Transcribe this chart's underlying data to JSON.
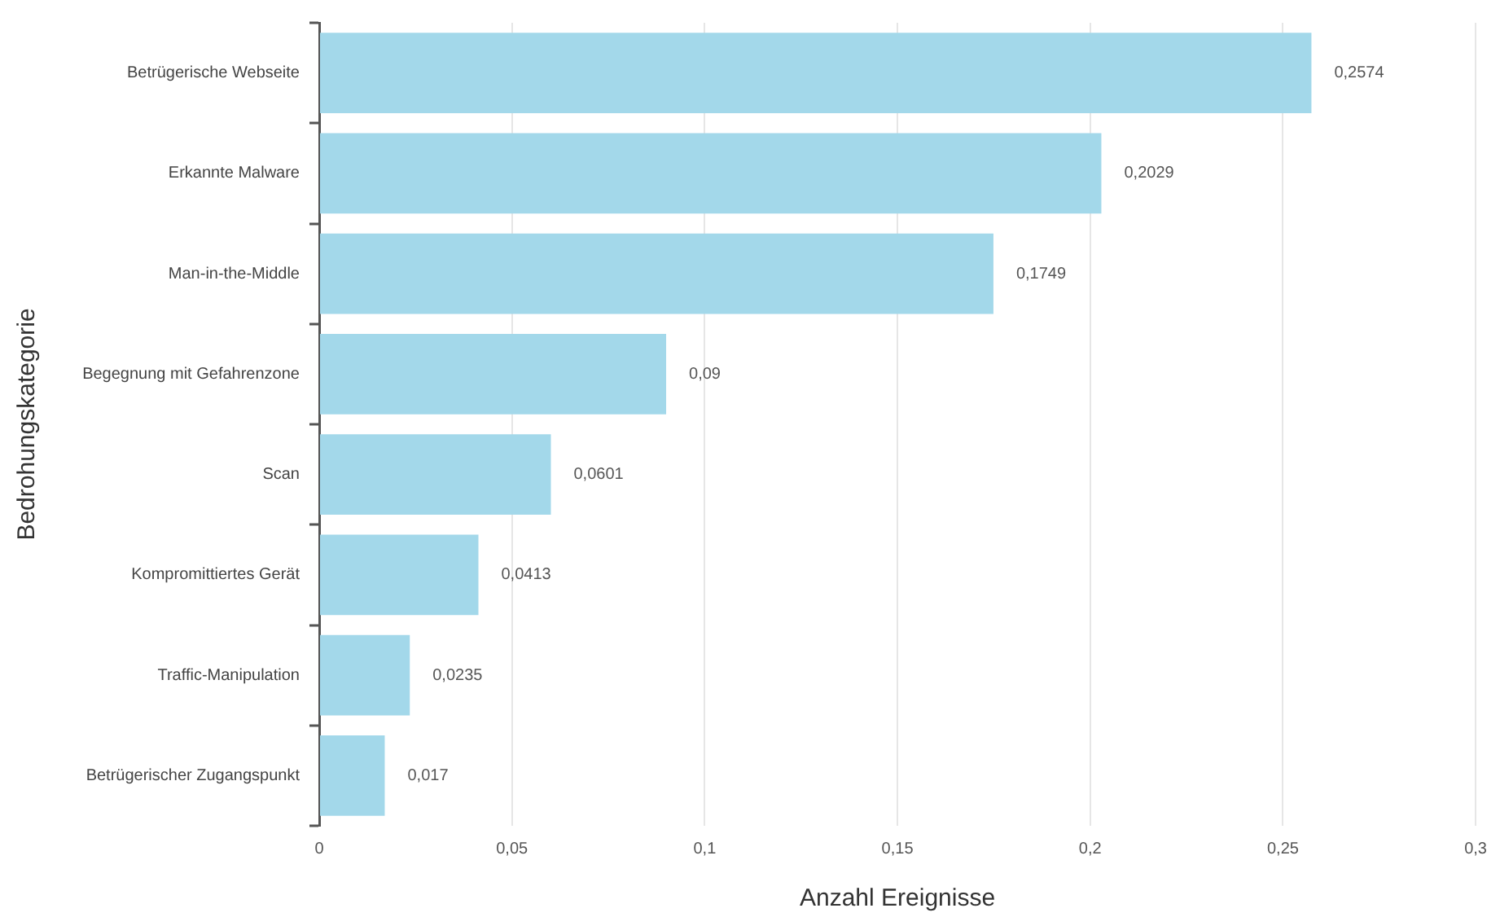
{
  "chart_data": {
    "type": "bar",
    "orientation": "horizontal",
    "xlabel": "Anzahl Ereignisse",
    "ylabel": "Bedrohungskategorie",
    "categories": [
      "Betrügerische Webseite",
      "Erkannte Malware",
      "Man-in-the-Middle",
      "Begegnung mit Gefahrenzone",
      "Scan",
      "Kompromittiertes Gerät",
      "Traffic-Manipulation",
      "Betrügerischer Zugangspunkt"
    ],
    "values": [
      0.2574,
      0.2029,
      0.1749,
      0.09,
      0.0601,
      0.0413,
      0.0235,
      0.017
    ],
    "color": "#a3d8ea",
    "value_labels": [
      "0,2574",
      "0,2029",
      "0,1749",
      "0,09",
      "0,0601",
      "0,0413",
      "0,0235",
      "0,017"
    ],
    "xlim": [
      0,
      0.3
    ],
    "xticks": [
      0,
      {
        "value": 0.05,
        "label": "0,05"
      },
      {
        "value": 0.1,
        "label": "0,1"
      },
      {
        "value": 0.15,
        "label": "0,15"
      },
      {
        "value": 0.2,
        "label": "0,2"
      },
      {
        "value": 0.25,
        "label": "0,25"
      },
      {
        "value": 0.3,
        "label": "0,3"
      }
    ],
    "grid": "x"
  }
}
